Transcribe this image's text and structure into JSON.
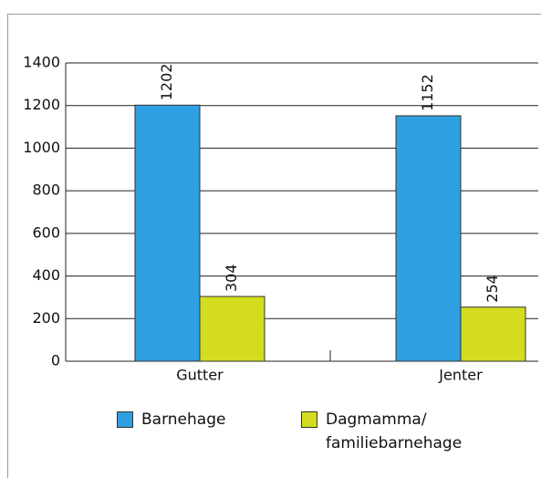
{
  "chart_data": {
    "type": "bar",
    "categories": [
      "Gutter",
      "Jenter"
    ],
    "series": [
      {
        "name": "Barnehage",
        "color": "#2e9fe0",
        "values": [
          1202,
          1152
        ]
      },
      {
        "name": "Dagmamma/ familiebarnehage",
        "color": "#d4dc1f",
        "values": [
          304,
          254
        ]
      }
    ],
    "ylim": [
      0,
      1400
    ],
    "yticks": [
      0,
      200,
      400,
      600,
      800,
      1000,
      1200,
      1400
    ],
    "grid": true
  }
}
